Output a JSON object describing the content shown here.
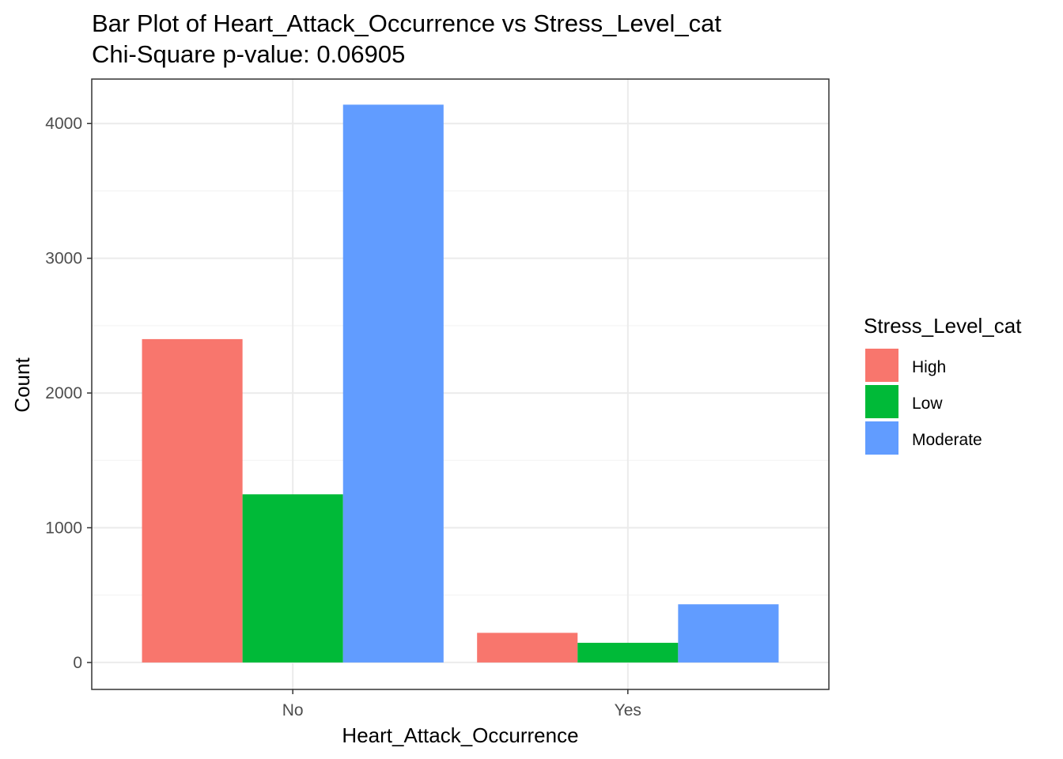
{
  "chart_data": {
    "type": "bar",
    "title": "Bar Plot of Heart_Attack_Occurrence vs Stress_Level_cat",
    "subtitle": "Chi-Square p-value: 0.06905",
    "xlabel": "Heart_Attack_Occurrence",
    "ylabel": "Count",
    "categories": [
      "No",
      "Yes"
    ],
    "series": [
      {
        "name": "High",
        "values": [
          2400,
          220
        ],
        "color": "#F8766D"
      },
      {
        "name": "Low",
        "values": [
          1248,
          146
        ],
        "color": "#00BA38"
      },
      {
        "name": "Moderate",
        "values": [
          4140,
          432
        ],
        "color": "#619CFF"
      }
    ],
    "yticks": [
      0,
      1000,
      2000,
      3000,
      4000
    ],
    "ylim": [
      -200,
      4330
    ],
    "legend_title": "Stress_Level_cat",
    "legend_position": "right",
    "grid": true
  }
}
